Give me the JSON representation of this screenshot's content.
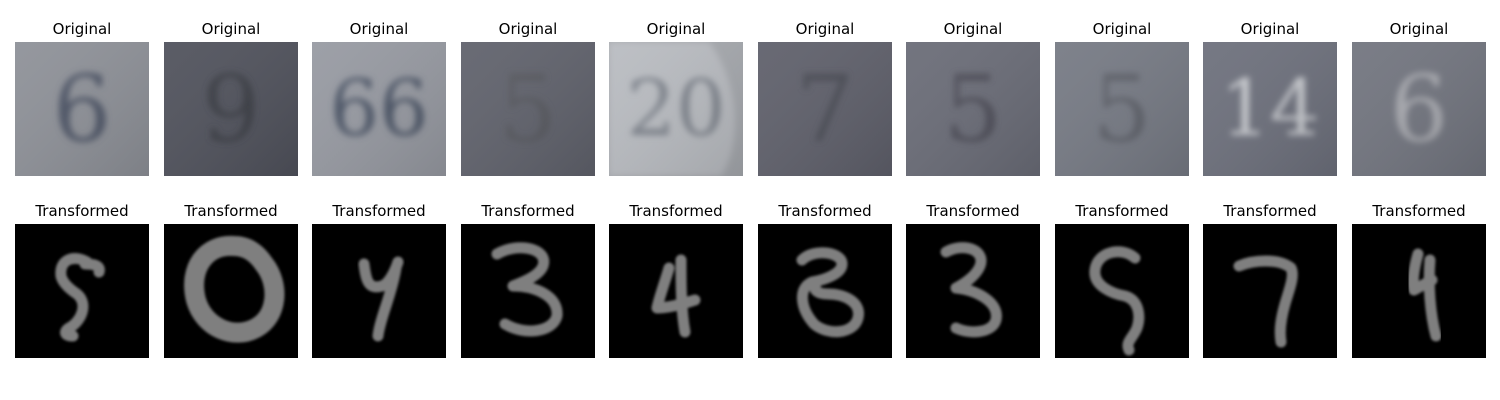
{
  "rows": [
    {
      "title": "Original",
      "images": [
        {
          "subject": "digit",
          "digit": "6",
          "bg": "#8e9198",
          "fg": "#4d5566"
        },
        {
          "subject": "digit",
          "digit": "9",
          "bg": "#50525c",
          "fg": "#3a3c44"
        },
        {
          "subject": "digit",
          "digit": "66",
          "bg": "#979aa2",
          "fg": "#4c5566"
        },
        {
          "subject": "digit",
          "digit": "5",
          "bg": "#60626c",
          "fg": "#56585f"
        },
        {
          "subject": "digit",
          "digit": "20",
          "bg": "#a6a9ae",
          "fg": "#7e838c"
        },
        {
          "subject": "digit",
          "digit": "7",
          "bg": "#5f606b",
          "fg": "#4a4b55"
        },
        {
          "subject": "digit",
          "digit": "5",
          "bg": "#6a6c77",
          "fg": "#4d4e59"
        },
        {
          "subject": "digit",
          "digit": "5",
          "bg": "#767a84",
          "fg": "#5d6069"
        },
        {
          "subject": "digit",
          "digit": "14",
          "bg": "#6d707c",
          "fg": "#c8cacf"
        },
        {
          "subject": "digit",
          "digit": "6",
          "bg": "#72757f",
          "fg": "#a7a9af"
        }
      ]
    },
    {
      "title": "Transformed",
      "images": [
        {
          "subject": "digit",
          "digit": "5",
          "bg": "#000000",
          "fg": "#7f7f7f"
        },
        {
          "subject": "digit",
          "digit": "0",
          "bg": "#000000",
          "fg": "#7f7f7f"
        },
        {
          "subject": "digit",
          "digit": "4",
          "bg": "#000000",
          "fg": "#7f7f7f"
        },
        {
          "subject": "digit",
          "digit": "3",
          "bg": "#000000",
          "fg": "#7f7f7f"
        },
        {
          "subject": "digit",
          "digit": "4",
          "bg": "#000000",
          "fg": "#7f7f7f"
        },
        {
          "subject": "digit",
          "digit": "8",
          "bg": "#000000",
          "fg": "#7f7f7f"
        },
        {
          "subject": "digit",
          "digit": "3",
          "bg": "#000000",
          "fg": "#7f7f7f"
        },
        {
          "subject": "digit",
          "digit": "5",
          "bg": "#000000",
          "fg": "#7f7f7f"
        },
        {
          "subject": "digit",
          "digit": "7",
          "bg": "#000000",
          "fg": "#7f7f7f"
        },
        {
          "subject": "digit",
          "digit": "4",
          "bg": "#000000",
          "fg": "#7f7f7f"
        }
      ]
    }
  ]
}
